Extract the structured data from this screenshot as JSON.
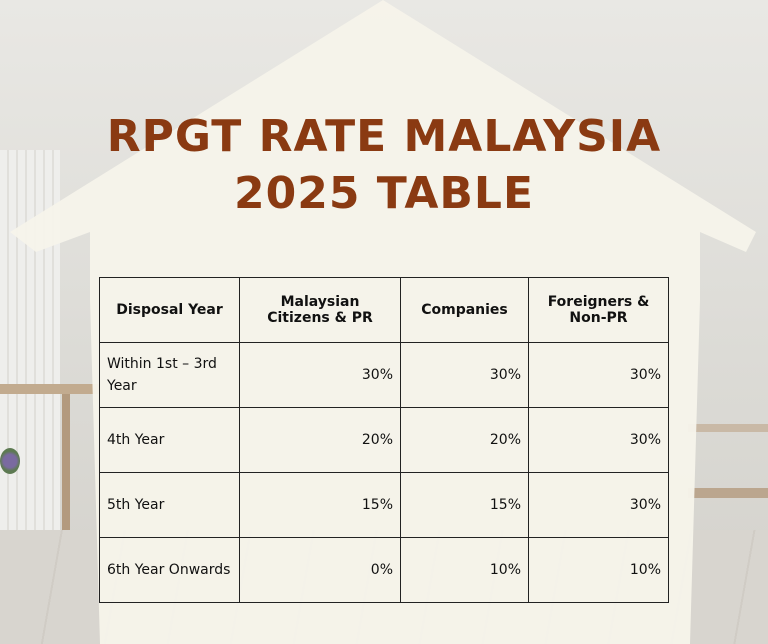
{
  "title": {
    "line1": "RPGT RATE MALAYSIA",
    "line2": "2025 TABLE"
  },
  "colors": {
    "title": "#8a3a12",
    "house": "#f6f4ea"
  },
  "table": {
    "headers": [
      "Disposal Year",
      "Malaysian Citizens & PR",
      "Companies",
      "Foreigners & Non-PR"
    ],
    "rows": [
      {
        "period": "Within 1st – 3rd Year",
        "citizens": "30%",
        "companies": "30%",
        "foreigners": "30%"
      },
      {
        "period": "4th Year",
        "citizens": "20%",
        "companies": "20%",
        "foreigners": "30%"
      },
      {
        "period": "5th Year",
        "citizens": "15%",
        "companies": "15%",
        "foreigners": "30%"
      },
      {
        "period": "6th Year Onwards",
        "citizens": "0%",
        "companies": "10%",
        "foreigners": "10%"
      }
    ]
  }
}
